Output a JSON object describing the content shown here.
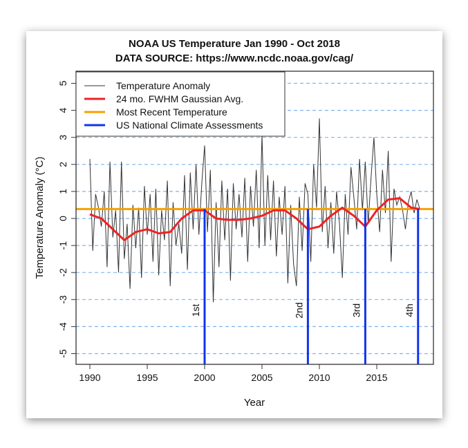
{
  "chart_data": {
    "type": "line",
    "title": "NOAA US Temperature Jan 1990 - Oct 2018",
    "subtitle": "DATA SOURCE: https://www.ncdc.noaa.gov/cag/",
    "xlabel": "Year",
    "ylabel": "Temperature Anomaly (°C)",
    "xlim": [
      1989,
      2019.2
    ],
    "ylim": [
      -5.4,
      5.4
    ],
    "xticks": [
      1990,
      1995,
      2000,
      2005,
      2010,
      2015
    ],
    "yticks": [
      -5,
      -4,
      -3,
      -2,
      -1,
      0,
      1,
      2,
      3,
      4,
      5
    ],
    "grid": "horizontal dashed",
    "legend_position": "top-left",
    "series": [
      {
        "name": "Temperature Anomaly",
        "color": "#333333",
        "x_start": 1990.0,
        "x_step": 0.25,
        "values": [
          2.2,
          -1.2,
          0.9,
          0.4,
          -0.3,
          1.0,
          -1.8,
          2.1,
          -0.7,
          0.3,
          -2.0,
          2.1,
          -1.5,
          -0.2,
          -2.6,
          0.5,
          -1.1,
          0.4,
          -2.2,
          1.2,
          -0.6,
          0.9,
          -1.6,
          1.1,
          -2.1,
          0.3,
          -0.8,
          1.4,
          -2.5,
          0.6,
          -1.0,
          -0.2,
          -1.3,
          1.6,
          -1.9,
          1.7,
          -0.4,
          2.0,
          -0.6,
          1.3,
          2.7,
          -0.5,
          1.8,
          -3.1,
          0.6,
          -1.8,
          1.4,
          -0.8,
          1.1,
          -2.3,
          1.3,
          -0.4,
          0.9,
          -0.7,
          1.5,
          -1.6,
          1.2,
          -0.3,
          1.8,
          -1.1,
          3.1,
          -1.0,
          1.6,
          -0.8,
          1.4,
          -1.4,
          0.8,
          -0.6,
          1.2,
          -2.4,
          0.5,
          -1.7,
          -2.5,
          0.8,
          -1.2,
          1.3,
          0.9,
          -1.6,
          2.0,
          0.4,
          3.7,
          -0.5,
          1.2,
          -1.1,
          0.6,
          -1.3,
          1.0,
          -0.2,
          -2.2,
          0.9,
          -0.6,
          1.9,
          0.8,
          -0.4,
          2.2,
          0.3,
          2.1,
          -0.2,
          1.5,
          3.0,
          0.9,
          -0.5,
          1.8,
          0.2,
          2.5,
          -1.6,
          1.1,
          0.5,
          0.8,
          0.3,
          -0.4,
          0.6,
          1.0,
          0.2,
          0.7,
          0.35
        ]
      },
      {
        "name": "24 mo. FWHM Gaussian Avg.",
        "color": "#ee2222",
        "x": [
          1990,
          1991,
          1992,
          1993,
          1994,
          1995,
          1996,
          1997,
          1998,
          1999,
          2000,
          2001,
          2002,
          2003,
          2004,
          2005,
          2006,
          2007,
          2008,
          2009,
          2010,
          2011,
          2012,
          2013,
          2014,
          2015,
          2016,
          2017,
          2018,
          2018.75
        ],
        "values": [
          0.15,
          0.0,
          -0.4,
          -0.8,
          -0.5,
          -0.4,
          -0.55,
          -0.5,
          0.0,
          0.3,
          0.3,
          0.0,
          -0.05,
          -0.05,
          0.0,
          0.1,
          0.3,
          0.3,
          0.0,
          -0.4,
          -0.3,
          0.1,
          0.4,
          0.1,
          -0.3,
          0.3,
          0.7,
          0.75,
          0.4,
          0.35
        ]
      },
      {
        "name": "Most Recent Temperature",
        "color": "#f5a000",
        "value": 0.35
      },
      {
        "name": "US National Climate Assessments",
        "color": "#1133ee",
        "x": [
          2000,
          2009,
          2014,
          2018.6
        ],
        "labels": [
          "1st",
          "2nd",
          "3rd",
          "4th"
        ]
      }
    ]
  }
}
